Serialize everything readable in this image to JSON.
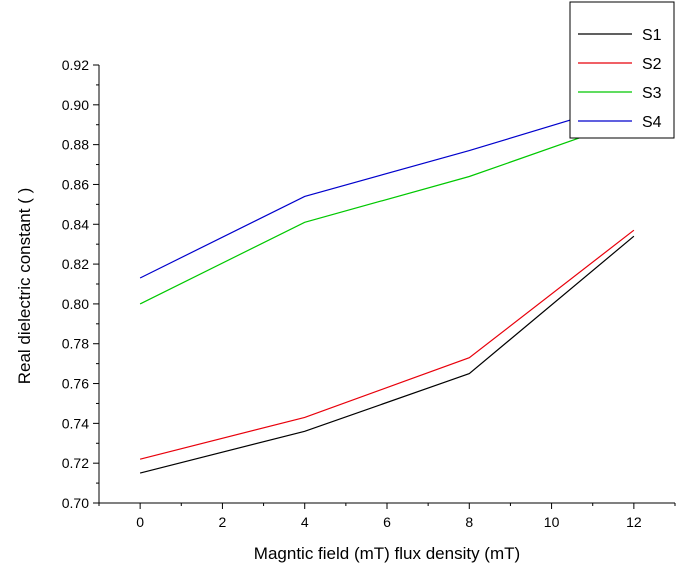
{
  "chart_data": {
    "type": "line",
    "title": "",
    "xlabel": "Magntic field (mT) flux density (mT)",
    "ylabel": "Real dielectric constant (  )",
    "xlim": [
      -1,
      13
    ],
    "ylim": [
      0.7,
      0.92
    ],
    "x_ticks": [
      0,
      2,
      4,
      6,
      8,
      10,
      12
    ],
    "y_ticks": [
      0.7,
      0.72,
      0.74,
      0.76,
      0.78,
      0.8,
      0.82,
      0.84,
      0.86,
      0.88,
      0.9,
      0.92
    ],
    "y_tick_labels": [
      "0.70",
      "0.72",
      "0.74",
      "0.76",
      "0.78",
      "0.80",
      "0.82",
      "0.84",
      "0.86",
      "0.88",
      "0.90",
      "0.92"
    ],
    "x": [
      0,
      4,
      8,
      12
    ],
    "series": [
      {
        "name": "S1",
        "color": "#000000",
        "values": [
          0.715,
          0.736,
          0.765,
          0.834
        ]
      },
      {
        "name": "S2",
        "color": "#e8000b",
        "values": [
          0.722,
          0.743,
          0.773,
          0.837
        ]
      },
      {
        "name": "S3",
        "color": "#00c800",
        "values": [
          0.8,
          0.841,
          0.864,
          0.893
        ]
      },
      {
        "name": "S4",
        "color": "#0000cc",
        "values": [
          0.813,
          0.854,
          0.877,
          0.902
        ]
      }
    ],
    "grid": false,
    "legend_position": "top-right"
  }
}
